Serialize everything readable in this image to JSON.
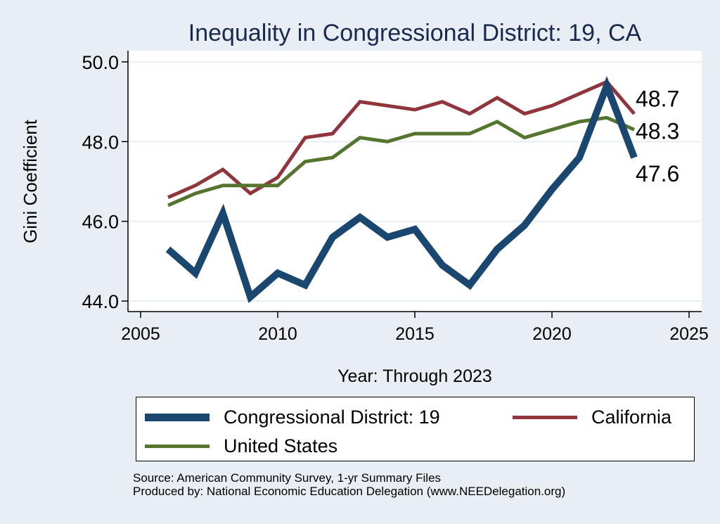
{
  "chart_data": {
    "type": "line",
    "title": "Inequality in Congressional District:  19, CA",
    "xlabel": "Year: Through 2023",
    "ylabel": "Gini Coefficient",
    "xlim": [
      2005,
      2025
    ],
    "ylim": [
      44.0,
      50.0
    ],
    "xticks": [
      2005,
      2010,
      2015,
      2020,
      2025
    ],
    "yticks": [
      44.0,
      46.0,
      48.0,
      50.0
    ],
    "ytick_labels": [
      "44.0",
      "46.0",
      "48.0",
      "50.0"
    ],
    "grid": "horizontal",
    "x": [
      2006,
      2007,
      2008,
      2009,
      2010,
      2011,
      2012,
      2013,
      2014,
      2015,
      2016,
      2017,
      2018,
      2019,
      2020,
      2021,
      2022,
      2023
    ],
    "series": [
      {
        "name": "Congressional District:  19",
        "color": "#1a476f",
        "values": [
          45.3,
          44.7,
          46.2,
          44.1,
          44.7,
          44.4,
          45.6,
          46.1,
          45.6,
          45.8,
          44.9,
          44.4,
          45.3,
          45.9,
          46.8,
          47.6,
          49.4,
          47.6
        ],
        "end_label": "47.6"
      },
      {
        "name": "California",
        "color": "#90353b",
        "values": [
          46.6,
          46.9,
          47.3,
          46.7,
          47.1,
          48.1,
          48.2,
          49.0,
          48.9,
          48.8,
          49.0,
          48.7,
          49.1,
          48.7,
          48.9,
          49.2,
          49.5,
          48.7
        ],
        "end_label": "48.7"
      },
      {
        "name": "United States",
        "color": "#55752f",
        "values": [
          46.4,
          46.7,
          46.9,
          46.9,
          46.9,
          47.5,
          47.6,
          48.1,
          48.0,
          48.2,
          48.2,
          48.2,
          48.5,
          48.1,
          48.3,
          48.5,
          48.6,
          48.3
        ],
        "end_label": "48.3"
      }
    ],
    "legend_placement": "bottom"
  },
  "legend": {
    "items": [
      {
        "label": "Congressional District:  19",
        "color": "#1a476f"
      },
      {
        "label": "California",
        "color": "#90353b"
      },
      {
        "label": "United States",
        "color": "#55752f"
      }
    ]
  },
  "notes": {
    "source": "Source: American Community Survey, 1-yr Summary Files",
    "produced_by": "Produced by: National Economic Education Delegation (www.NEEDelegation.org)"
  }
}
